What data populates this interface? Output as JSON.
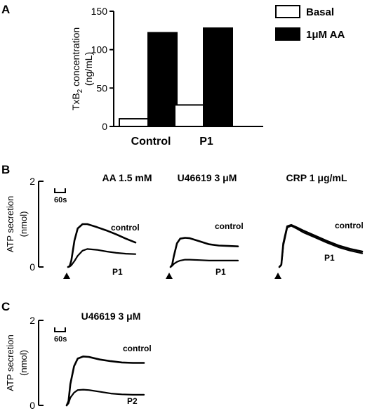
{
  "chart_data": [
    {
      "panel": "A",
      "type": "bar",
      "categories": [
        "Control",
        "P1"
      ],
      "ylabel": "TxB2 concentration (ng/mL)",
      "ylabel_main": "TxB",
      "ylabel_sub": "2",
      "ylabel_rest": " concentration",
      "ylabel_units": "(ng/mL)",
      "ylim": [
        0,
        150
      ],
      "yticks": [
        0,
        50,
        100,
        150
      ],
      "series": [
        {
          "name": "Basal",
          "values": [
            10,
            28
          ],
          "color": "#ffffff"
        },
        {
          "name": "1μM AA",
          "values": [
            122,
            128
          ],
          "color": "#000000"
        }
      ],
      "legend": "top-right",
      "grid": false
    },
    {
      "panel": "B",
      "type": "line",
      "ylabel": "ATP secretion",
      "ylabel_units": "(nmol)",
      "ylim": [
        0,
        2
      ],
      "yticks": [
        0,
        2
      ],
      "scale_bar": "60s",
      "subpanels": [
        {
          "title": "AA 1.5 mM",
          "x_seconds": [
            0,
            5,
            10,
            20,
            30,
            45,
            60,
            90,
            120,
            150,
            180,
            210
          ],
          "series": [
            {
              "name": "control",
              "values": [
                0,
                0.02,
                0.15,
                0.62,
                0.9,
                1.0,
                1.0,
                0.93,
                0.85,
                0.76,
                0.66,
                0.57
              ]
            },
            {
              "name": "P1",
              "values": [
                0,
                0.01,
                0.04,
                0.14,
                0.26,
                0.38,
                0.42,
                0.4,
                0.36,
                0.33,
                0.31,
                0.3
              ]
            }
          ]
        },
        {
          "title": "U46619 3 μM",
          "x_seconds": [
            0,
            5,
            10,
            20,
            30,
            45,
            60,
            90,
            120,
            150,
            180,
            210
          ],
          "series": [
            {
              "name": "control",
              "values": [
                0,
                0.05,
                0.25,
                0.55,
                0.66,
                0.68,
                0.67,
                0.6,
                0.53,
                0.5,
                0.49,
                0.48
              ]
            },
            {
              "name": "P1",
              "values": [
                0,
                0.03,
                0.07,
                0.12,
                0.15,
                0.17,
                0.17,
                0.16,
                0.15,
                0.15,
                0.15,
                0.15
              ]
            }
          ]
        },
        {
          "title": "CRP 1 μg/mL",
          "x_seconds": [
            0,
            5,
            10,
            20,
            30,
            45,
            60,
            90,
            120,
            150,
            180,
            210
          ],
          "series": [
            {
              "name": "control",
              "values": [
                0,
                0.05,
                0.55,
                0.95,
                0.98,
                0.92,
                0.85,
                0.73,
                0.61,
                0.5,
                0.42,
                0.36
              ]
            },
            {
              "name": "P1",
              "values": [
                0,
                0.05,
                0.5,
                0.92,
                0.96,
                0.89,
                0.81,
                0.69,
                0.57,
                0.46,
                0.38,
                0.32
              ]
            }
          ]
        }
      ]
    },
    {
      "panel": "C",
      "type": "line",
      "ylabel": "ATP secretion",
      "ylabel_units": "(nmol)",
      "ylim": [
        0,
        2
      ],
      "yticks": [
        0,
        2
      ],
      "scale_bar": "60s",
      "subpanels": [
        {
          "title": "U46619 3 μM",
          "x_seconds": [
            0,
            5,
            10,
            20,
            30,
            45,
            60,
            90,
            120,
            150,
            180,
            210
          ],
          "series": [
            {
              "name": "control",
              "values": [
                0,
                0.1,
                0.5,
                0.92,
                1.1,
                1.15,
                1.14,
                1.08,
                1.04,
                1.01,
                1.0,
                1.0
              ]
            },
            {
              "name": "P2",
              "values": [
                0,
                0.05,
                0.18,
                0.3,
                0.36,
                0.37,
                0.36,
                0.32,
                0.28,
                0.26,
                0.25,
                0.25
              ]
            }
          ]
        }
      ]
    }
  ],
  "panels": {
    "a_label": "A",
    "b_label": "B",
    "c_label": "C"
  }
}
